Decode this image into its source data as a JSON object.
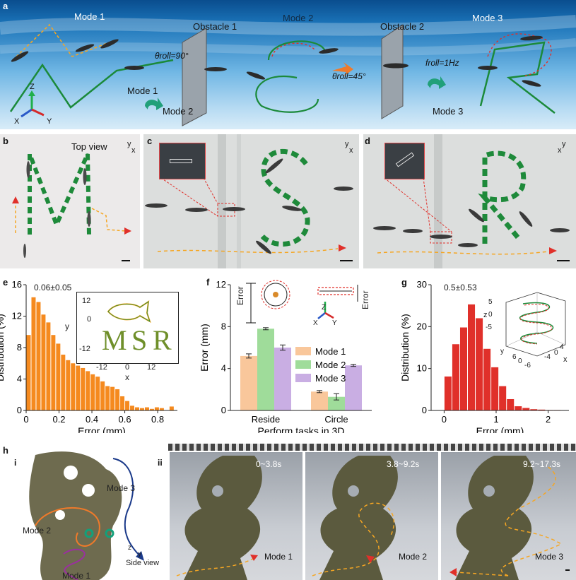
{
  "panel_a": {
    "label": "a",
    "mode1": "Mode 1",
    "mode2": "Mode 2",
    "mode3": "Mode 3",
    "obstacle1": "Obstacle 1",
    "obstacle2": "Obstacle 2",
    "theta90": "θroll=90°",
    "theta45": "θroll=45°",
    "froll": "froll=1Hz",
    "mode1_inline": "Mode 1",
    "to_mode2": "Mode 2",
    "to_mode3": "Mode 3",
    "axis_z": "Z",
    "axis_x": "X",
    "axis_y": "Y"
  },
  "panel_b": {
    "label": "b",
    "title": "Top view",
    "ax_y": "y",
    "ax_x": "x"
  },
  "panel_c": {
    "label": "c",
    "ax_y": "y",
    "ax_x": "x"
  },
  "panel_d": {
    "label": "d",
    "ax_y": "y",
    "ax_x": "x"
  },
  "panel_e": {
    "label": "e",
    "annotation": "0.06±0.05",
    "inset_ylabel": "y",
    "inset_xlabel": "x",
    "inset_yticks": [
      "12",
      "0",
      "-12"
    ],
    "inset_xticks": [
      "-12",
      "0",
      "12"
    ],
    "inset_letters": [
      "M",
      "S",
      "R"
    ]
  },
  "panel_f": {
    "label": "f",
    "error_label": "Error",
    "legend": [
      "Mode 1",
      "Mode 2",
      "Mode 3"
    ],
    "axis_z": "Z",
    "axis_x": "X",
    "axis_y": "Y"
  },
  "panel_g": {
    "label": "g",
    "annotation": "0.5±0.53",
    "inset_zticks": [
      "5",
      "0",
      "-5"
    ],
    "inset_ylabel_side": "y",
    "inset_xticks": [
      "-4",
      "0",
      "4"
    ],
    "inset_yticks": [
      "6",
      "0",
      "-6"
    ],
    "inset_zlabel": "z",
    "inset_xlabel": "x"
  },
  "panel_h": {
    "label": "h",
    "sub_i": "i",
    "sub_ii": "ii",
    "mode1": "Mode 1",
    "mode2": "Mode 2",
    "mode3": "Mode 3",
    "side_view": "Side view",
    "ax_z": "z",
    "ax_y": "y",
    "frames": [
      {
        "time": "0~3.8s",
        "mode": "Mode 1"
      },
      {
        "time": "3.8~9.2s",
        "mode": "Mode 2"
      },
      {
        "time": "9.2~17.3s",
        "mode": "Mode 3"
      }
    ]
  },
  "colors": {
    "orange": "#f58a1f",
    "green_dash": "#1e8a3a",
    "red": "#e0302a",
    "mode1": "#f9c79b",
    "mode2": "#9fdc9a",
    "mode3": "#c9aee3"
  },
  "chart_data": [
    {
      "type": "bar",
      "panel": "e",
      "xlabel": "Error (mm)",
      "ylabel": "Distribution (%)",
      "xlim": [
        0,
        0.92
      ],
      "ylim": [
        0,
        16
      ],
      "xticks": [
        0,
        0.2,
        0.4,
        0.6,
        0.8
      ],
      "yticks": [
        0,
        4,
        8,
        12,
        16
      ],
      "bin_width": 0.03,
      "bin_starts": [
        0.0,
        0.03,
        0.06,
        0.09,
        0.12,
        0.15,
        0.18,
        0.21,
        0.24,
        0.27,
        0.3,
        0.33,
        0.36,
        0.39,
        0.42,
        0.45,
        0.48,
        0.51,
        0.54,
        0.57,
        0.6,
        0.63,
        0.66,
        0.69,
        0.72,
        0.75,
        0.78,
        0.81,
        0.84,
        0.87
      ],
      "values": [
        9.6,
        14.4,
        13.8,
        12.2,
        11.2,
        9.6,
        8.5,
        7.1,
        6.4,
        6.0,
        5.7,
        5.4,
        5.0,
        4.6,
        4.3,
        3.7,
        3.1,
        3.0,
        2.7,
        1.8,
        1.2,
        0.6,
        0.4,
        0.3,
        0.4,
        0.2,
        0.4,
        0.3,
        0.0,
        0.5
      ]
    },
    {
      "type": "bar",
      "panel": "f",
      "xlabel": "Perform tasks in 3D",
      "ylabel": "Error (mm)",
      "ylim": [
        0,
        12
      ],
      "yticks": [
        0,
        4,
        8,
        12
      ],
      "categories": [
        "Reside",
        "Circle"
      ],
      "series": [
        {
          "name": "Mode 1",
          "values": [
            5.2,
            1.8
          ],
          "errors": [
            0.2,
            0.1
          ]
        },
        {
          "name": "Mode 2",
          "values": [
            7.8,
            1.3
          ],
          "errors": [
            0.1,
            0.3
          ]
        },
        {
          "name": "Mode 3",
          "values": [
            6.0,
            4.3
          ],
          "errors": [
            0.25,
            0.1
          ]
        }
      ]
    },
    {
      "type": "bar",
      "panel": "g",
      "xlabel": "Error (mm)",
      "ylabel": "Distribution (%)",
      "xlim": [
        -0.25,
        2.4
      ],
      "ylim": [
        0,
        30
      ],
      "xticks": [
        0,
        1,
        2
      ],
      "yticks": [
        0,
        10,
        20,
        30
      ],
      "bin_width": 0.15,
      "bin_starts": [
        0.0,
        0.15,
        0.3,
        0.45,
        0.6,
        0.75,
        0.9,
        1.05,
        1.2,
        1.35,
        1.5,
        1.65,
        1.8,
        1.95,
        2.1
      ],
      "values": [
        8.1,
        15.8,
        19.8,
        25.3,
        22.0,
        14.7,
        10.3,
        5.8,
        2.7,
        1.0,
        0.6,
        0.3,
        0.2,
        0.1,
        0.1
      ]
    }
  ]
}
